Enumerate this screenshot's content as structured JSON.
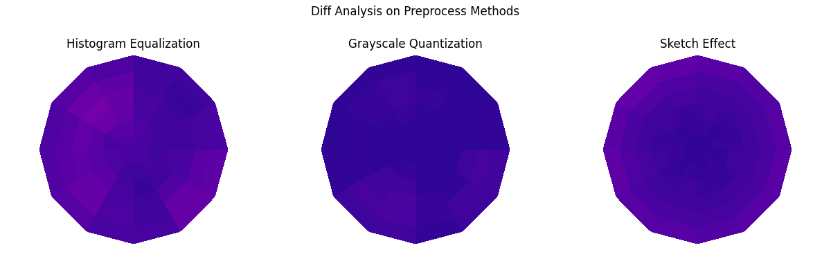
{
  "title": "Diff Analysis on Preprocess Methods",
  "chart_data": [
    {
      "type": "heatmap",
      "title": "Histogram Equalization",
      "tick_labels": false,
      "grid": false,
      "value_range": [
        0,
        1
      ],
      "cells": [
        [
          0.12,
          0.13,
          0.12,
          0.14,
          0.13,
          0.12,
          0.13,
          0.12,
          0.11,
          0.12,
          0.13,
          0.12
        ],
        [
          0.1,
          0.11,
          0.13,
          0.16,
          0.15,
          0.12,
          0.14,
          0.13,
          0.1,
          0.09,
          0.11,
          0.1
        ],
        [
          0.09,
          0.1,
          0.12,
          0.18,
          0.2,
          0.16,
          0.15,
          0.16,
          0.11,
          0.08,
          0.1,
          0.11
        ],
        [
          0.1,
          0.09,
          0.11,
          0.19,
          0.22,
          0.18,
          0.17,
          0.18,
          0.12,
          0.09,
          0.14,
          0.12
        ],
        [
          0.11,
          0.08,
          0.1,
          0.17,
          0.2,
          0.15,
          0.16,
          0.19,
          0.13,
          0.1,
          0.18,
          0.16
        ],
        [
          0.12,
          0.09,
          0.1,
          0.13,
          0.15,
          0.13,
          0.14,
          0.15,
          0.12,
          0.11,
          0.19,
          0.17
        ]
      ]
    },
    {
      "type": "heatmap",
      "title": "Grayscale Quantization",
      "tick_labels": false,
      "grid": false,
      "value_range": [
        0,
        1
      ],
      "cells": [
        [
          0.06,
          0.06,
          0.06,
          0.06,
          0.06,
          0.06,
          0.06,
          0.06,
          0.06,
          0.06,
          0.06,
          0.06
        ],
        [
          0.06,
          0.06,
          0.06,
          0.07,
          0.06,
          0.06,
          0.06,
          0.07,
          0.08,
          0.06,
          0.06,
          0.06
        ],
        [
          0.06,
          0.06,
          0.07,
          0.08,
          0.07,
          0.06,
          0.06,
          0.09,
          0.1,
          0.07,
          0.06,
          0.06
        ],
        [
          0.06,
          0.07,
          0.08,
          0.09,
          0.08,
          0.07,
          0.07,
          0.1,
          0.12,
          0.08,
          0.07,
          0.09
        ],
        [
          0.07,
          0.06,
          0.07,
          0.09,
          0.08,
          0.07,
          0.07,
          0.11,
          0.12,
          0.08,
          0.1,
          0.11
        ],
        [
          0.07,
          0.06,
          0.06,
          0.07,
          0.07,
          0.06,
          0.07,
          0.09,
          0.1,
          0.07,
          0.09,
          0.1
        ]
      ]
    },
    {
      "type": "heatmap",
      "title": "Sketch Effect",
      "tick_labels": false,
      "grid": false,
      "value_range": [
        0,
        1
      ],
      "cells": [
        [
          0.07,
          0.07,
          0.07,
          0.07,
          0.07,
          0.07,
          0.07,
          0.07,
          0.07,
          0.07,
          0.07,
          0.07
        ],
        [
          0.08,
          0.07,
          0.08,
          0.08,
          0.07,
          0.08,
          0.08,
          0.07,
          0.08,
          0.07,
          0.08,
          0.07
        ],
        [
          0.08,
          0.08,
          0.09,
          0.08,
          0.09,
          0.08,
          0.09,
          0.08,
          0.09,
          0.08,
          0.08,
          0.09
        ],
        [
          0.1,
          0.09,
          0.1,
          0.11,
          0.1,
          0.1,
          0.11,
          0.1,
          0.1,
          0.09,
          0.1,
          0.1
        ],
        [
          0.12,
          0.11,
          0.12,
          0.13,
          0.14,
          0.12,
          0.13,
          0.12,
          0.12,
          0.11,
          0.12,
          0.12
        ],
        [
          0.15,
          0.14,
          0.16,
          0.17,
          0.18,
          0.16,
          0.17,
          0.15,
          0.15,
          0.14,
          0.15,
          0.16
        ]
      ]
    }
  ]
}
